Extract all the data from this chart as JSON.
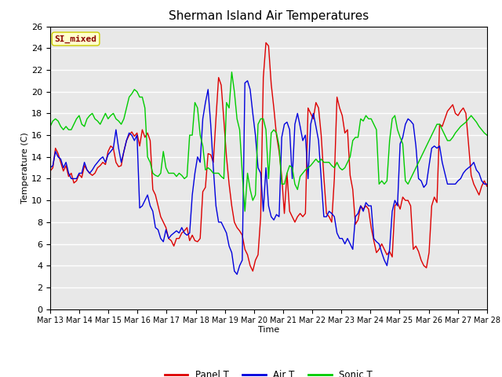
{
  "title": "Sherman Island Air Temperatures",
  "xlabel": "Time",
  "ylabel": "Temperature (C)",
  "ylim": [
    0,
    26
  ],
  "background_color": "#e8e8e8",
  "figure_bg": "#ffffff",
  "label_box": "SI_mixed",
  "label_box_text_color": "#8b0000",
  "label_box_bg": "#ffffcc",
  "label_box_edge_color": "#cccc00",
  "x_tick_labels": [
    "Mar 13",
    "Mar 14",
    "Mar 15",
    "Mar 16",
    "Mar 17",
    "Mar 18",
    "Mar 19",
    "Mar 20",
    "Mar 21",
    "Mar 22",
    "Mar 23",
    "Mar 24",
    "Mar 25",
    "Mar 26",
    "Mar 27",
    "Mar 28"
  ],
  "panel_t_color": "#dd0000",
  "air_t_color": "#0000dd",
  "sonic_t_color": "#00cc00",
  "line_width": 1.0,
  "panel_t": [
    12.7,
    13.0,
    14.8,
    14.3,
    13.5,
    12.7,
    13.2,
    12.2,
    12.5,
    11.6,
    11.8,
    12.4,
    12.1,
    13.2,
    12.8,
    12.5,
    12.3,
    12.5,
    13.0,
    13.2,
    13.5,
    13.3,
    14.5,
    15.0,
    14.8,
    13.5,
    13.1,
    13.2,
    14.5,
    15.5,
    16.0,
    16.3,
    15.9,
    16.2,
    15.0,
    16.5,
    15.8,
    16.2,
    15.5,
    11.0,
    10.5,
    9.5,
    8.5,
    8.0,
    7.5,
    6.5,
    6.3,
    5.8,
    6.5,
    6.5,
    7.0,
    7.2,
    7.5,
    6.3,
    6.8,
    6.3,
    6.2,
    6.5,
    10.8,
    11.2,
    14.3,
    14.2,
    13.5,
    17.5,
    21.3,
    20.6,
    17.4,
    14.0,
    11.5,
    9.5,
    8.0,
    7.5,
    7.2,
    6.8,
    5.5,
    5.0,
    4.0,
    3.5,
    4.5,
    5.0,
    8.5,
    21.3,
    24.5,
    24.2,
    20.7,
    18.5,
    16.0,
    14.5,
    12.2,
    8.8,
    12.5,
    9.0,
    8.5,
    8.0,
    8.5,
    8.8,
    8.5,
    8.8,
    18.5,
    18.0,
    17.5,
    19.0,
    18.5,
    16.0,
    12.2,
    8.8,
    8.5,
    8.0,
    12.0,
    19.5,
    18.5,
    17.8,
    16.2,
    16.5,
    12.3,
    11.0,
    7.8,
    8.2,
    9.5,
    9.2,
    9.5,
    9.2,
    7.5,
    6.3,
    5.2,
    5.5,
    6.0,
    5.5,
    5.0,
    5.3,
    4.8,
    9.5,
    9.8,
    9.2,
    10.3,
    10.0,
    10.0,
    9.5,
    5.5,
    5.8,
    5.3,
    4.5,
    4.0,
    3.8,
    5.2,
    9.5,
    10.3,
    9.8,
    17.0,
    16.8,
    17.5,
    18.2,
    18.5,
    18.8,
    18.0,
    17.8,
    18.2,
    18.5,
    18.0,
    15.2,
    12.3,
    11.5,
    11.0,
    10.5,
    11.3,
    11.8,
    11.3,
    11.0,
    10.8,
    10.5,
    12.0
  ],
  "air_t": [
    13.0,
    13.2,
    14.5,
    14.0,
    13.8,
    13.0,
    13.5,
    12.5,
    12.0,
    12.0,
    12.0,
    12.5,
    12.5,
    13.5,
    12.8,
    12.5,
    12.8,
    13.2,
    13.5,
    13.8,
    14.0,
    13.5,
    14.2,
    14.5,
    14.8,
    16.5,
    14.8,
    13.5,
    14.5,
    15.5,
    16.2,
    16.0,
    15.5,
    16.0,
    9.3,
    9.5,
    10.0,
    10.5,
    9.5,
    9.0,
    7.5,
    7.3,
    6.5,
    6.2,
    7.3,
    6.5,
    6.8,
    7.0,
    7.2,
    7.0,
    7.5,
    7.0,
    6.8,
    7.0,
    10.5,
    12.5,
    14.0,
    13.5,
    17.5,
    19.0,
    20.2,
    17.0,
    13.0,
    9.5,
    8.0,
    8.0,
    7.5,
    7.0,
    5.8,
    5.2,
    3.5,
    3.2,
    4.0,
    4.5,
    20.8,
    21.0,
    20.2,
    18.0,
    16.0,
    13.0,
    12.5,
    9.0,
    13.0,
    9.5,
    8.5,
    8.2,
    8.7,
    8.5,
    15.8,
    17.0,
    17.2,
    16.5,
    12.0,
    17.0,
    18.0,
    16.8,
    15.5,
    16.0,
    12.0,
    17.0,
    18.0,
    16.8,
    15.5,
    12.0,
    8.5,
    8.5,
    9.0,
    8.8,
    8.5,
    7.0,
    6.5,
    6.5,
    6.0,
    6.5,
    6.0,
    5.5,
    8.5,
    8.8,
    9.5,
    9.0,
    9.8,
    9.5,
    9.5,
    6.5,
    6.2,
    6.0,
    5.2,
    4.5,
    4.0,
    5.5,
    9.0,
    10.0,
    9.5,
    15.2,
    15.8,
    17.0,
    17.5,
    17.3,
    17.0,
    15.0,
    12.0,
    11.8,
    11.2,
    11.5,
    13.2,
    14.8,
    15.0,
    14.8,
    15.0,
    13.5,
    12.5,
    11.5,
    11.5,
    11.5,
    11.5,
    11.8,
    12.0,
    12.5,
    12.8,
    13.0,
    13.2,
    13.5,
    12.8,
    12.5,
    11.8,
    11.5,
    11.5,
    11.5,
    11.5
  ],
  "sonic_t": [
    16.8,
    17.3,
    17.5,
    17.3,
    16.8,
    16.5,
    16.8,
    16.5,
    16.5,
    17.0,
    17.5,
    17.8,
    17.0,
    16.8,
    17.5,
    17.8,
    18.0,
    17.5,
    17.3,
    17.0,
    17.5,
    18.0,
    17.5,
    17.8,
    18.0,
    17.5,
    17.3,
    17.0,
    17.5,
    18.5,
    19.5,
    19.8,
    20.2,
    20.0,
    19.5,
    19.5,
    18.5,
    14.0,
    13.5,
    12.5,
    12.3,
    12.2,
    12.5,
    14.5,
    13.0,
    12.5,
    12.5,
    12.5,
    12.2,
    12.5,
    12.3,
    12.0,
    12.2,
    16.0,
    16.0,
    19.0,
    18.5,
    16.0,
    15.0,
    12.8,
    13.0,
    12.8,
    12.5,
    12.5,
    12.5,
    12.2,
    12.0,
    19.0,
    18.5,
    21.8,
    20.0,
    17.5,
    16.5,
    12.5,
    9.0,
    12.5,
    11.0,
    10.0,
    10.5,
    17.0,
    17.5,
    17.5,
    16.5,
    12.0,
    16.2,
    16.5,
    16.2,
    15.0,
    11.5,
    11.5,
    12.5,
    13.2,
    13.0,
    11.5,
    11.0,
    12.2,
    12.5,
    12.8,
    13.0,
    13.2,
    13.5,
    13.8,
    13.5,
    13.8,
    13.5,
    13.5,
    13.5,
    13.2,
    13.0,
    13.5,
    13.0,
    12.8,
    13.0,
    13.5,
    14.0,
    15.5,
    15.8,
    15.8,
    17.5,
    17.3,
    17.8,
    17.5,
    17.5,
    17.0,
    16.5,
    11.5,
    11.8,
    11.5,
    11.8,
    15.5,
    17.5,
    17.8,
    16.5,
    15.8,
    15.2,
    11.8,
    11.5,
    12.0,
    12.5,
    13.0,
    13.5,
    14.0,
    14.5,
    15.0,
    15.5,
    16.0,
    16.5,
    17.0,
    17.0,
    16.5,
    16.0,
    15.5,
    15.5,
    15.8,
    16.2,
    16.5,
    16.8,
    17.0,
    17.2,
    17.5,
    17.8,
    17.5,
    17.2,
    16.8,
    16.5,
    16.2,
    16.0
  ]
}
